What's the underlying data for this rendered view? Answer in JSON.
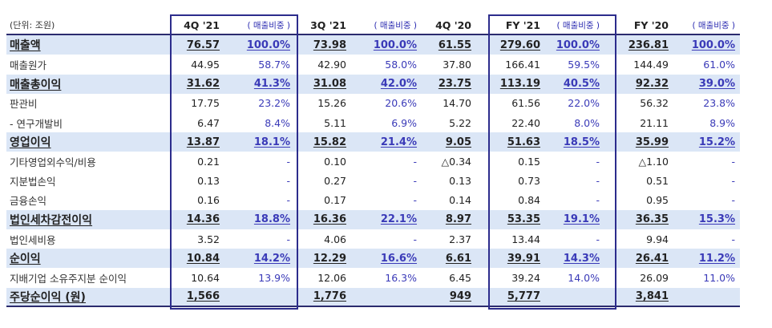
{
  "unit_label": "(단위: 조원)",
  "columns": [
    "4Q '21",
    "( 매출비중 )",
    "3Q '21",
    "( 매출비중 )",
    "4Q '20",
    "FY '21",
    "( 매출비중 )",
    "FY '20",
    "( 매출비중 )"
  ],
  "rows": [
    {
      "label": "매출액",
      "hl": true,
      "cells": [
        "76.57",
        "100.0%",
        "73.98",
        "100.0%",
        "61.55",
        "279.60",
        "100.0%",
        "236.81",
        "100.0%"
      ]
    },
    {
      "label": "매출원가",
      "hl": false,
      "cells": [
        "44.95",
        "58.7%",
        "42.90",
        "58.0%",
        "37.80",
        "166.41",
        "59.5%",
        "144.49",
        "61.0%"
      ]
    },
    {
      "label": "매출총이익",
      "hl": true,
      "cells": [
        "31.62",
        "41.3%",
        "31.08",
        "42.0%",
        "23.75",
        "113.19",
        "40.5%",
        "92.32",
        "39.0%"
      ]
    },
    {
      "label": "판관비",
      "hl": false,
      "cells": [
        "17.75",
        "23.2%",
        "15.26",
        "20.6%",
        "14.70",
        "61.56",
        "22.0%",
        "56.32",
        "23.8%"
      ]
    },
    {
      "label": " - 연구개발비",
      "hl": false,
      "cells": [
        "6.47",
        "8.4%",
        "5.11",
        "6.9%",
        "5.22",
        "22.40",
        "8.0%",
        "21.11",
        "8.9%"
      ]
    },
    {
      "label": "영업이익",
      "hl": true,
      "cells": [
        "13.87",
        "18.1%",
        "15.82",
        "21.4%",
        "9.05",
        "51.63",
        "18.5%",
        "35.99",
        "15.2%"
      ]
    },
    {
      "label": "기타영업외수익/비용",
      "hl": false,
      "cells": [
        "0.21",
        "-",
        "0.10",
        "-",
        "△0.34",
        "0.15",
        "-",
        "△1.10",
        "-"
      ]
    },
    {
      "label": "지분법손익",
      "hl": false,
      "cells": [
        "0.13",
        "-",
        "0.27",
        "-",
        "0.13",
        "0.73",
        "-",
        "0.51",
        "-"
      ]
    },
    {
      "label": "금융손익",
      "hl": false,
      "cells": [
        "0.16",
        "-",
        "0.17",
        "-",
        "0.14",
        "0.84",
        "-",
        "0.95",
        "-"
      ]
    },
    {
      "label": "법인세차감전이익",
      "hl": true,
      "cells": [
        "14.36",
        "18.8%",
        "16.36",
        "22.1%",
        "8.97",
        "53.35",
        "19.1%",
        "36.35",
        "15.3%"
      ]
    },
    {
      "label": "법인세비용",
      "hl": false,
      "cells": [
        "3.52",
        "-",
        "4.06",
        "-",
        "2.37",
        "13.44",
        "-",
        "9.94",
        "-"
      ]
    },
    {
      "label": "순이익",
      "hl": true,
      "cells": [
        "10.84",
        "14.2%",
        "12.29",
        "16.6%",
        "6.61",
        "39.91",
        "14.3%",
        "26.41",
        "11.2%"
      ]
    },
    {
      "label": "지배기업 소유주지분 순이익",
      "hl": false,
      "cells": [
        "10.64",
        "13.9%",
        "12.06",
        "16.3%",
        "6.45",
        "39.24",
        "14.0%",
        "26.09",
        "11.0%"
      ]
    },
    {
      "label": "주당순이익 (원)",
      "hl": true,
      "cells": [
        "1,566",
        "",
        "1,776",
        "",
        "949",
        "5,777",
        "",
        "3,841",
        ""
      ]
    }
  ]
}
